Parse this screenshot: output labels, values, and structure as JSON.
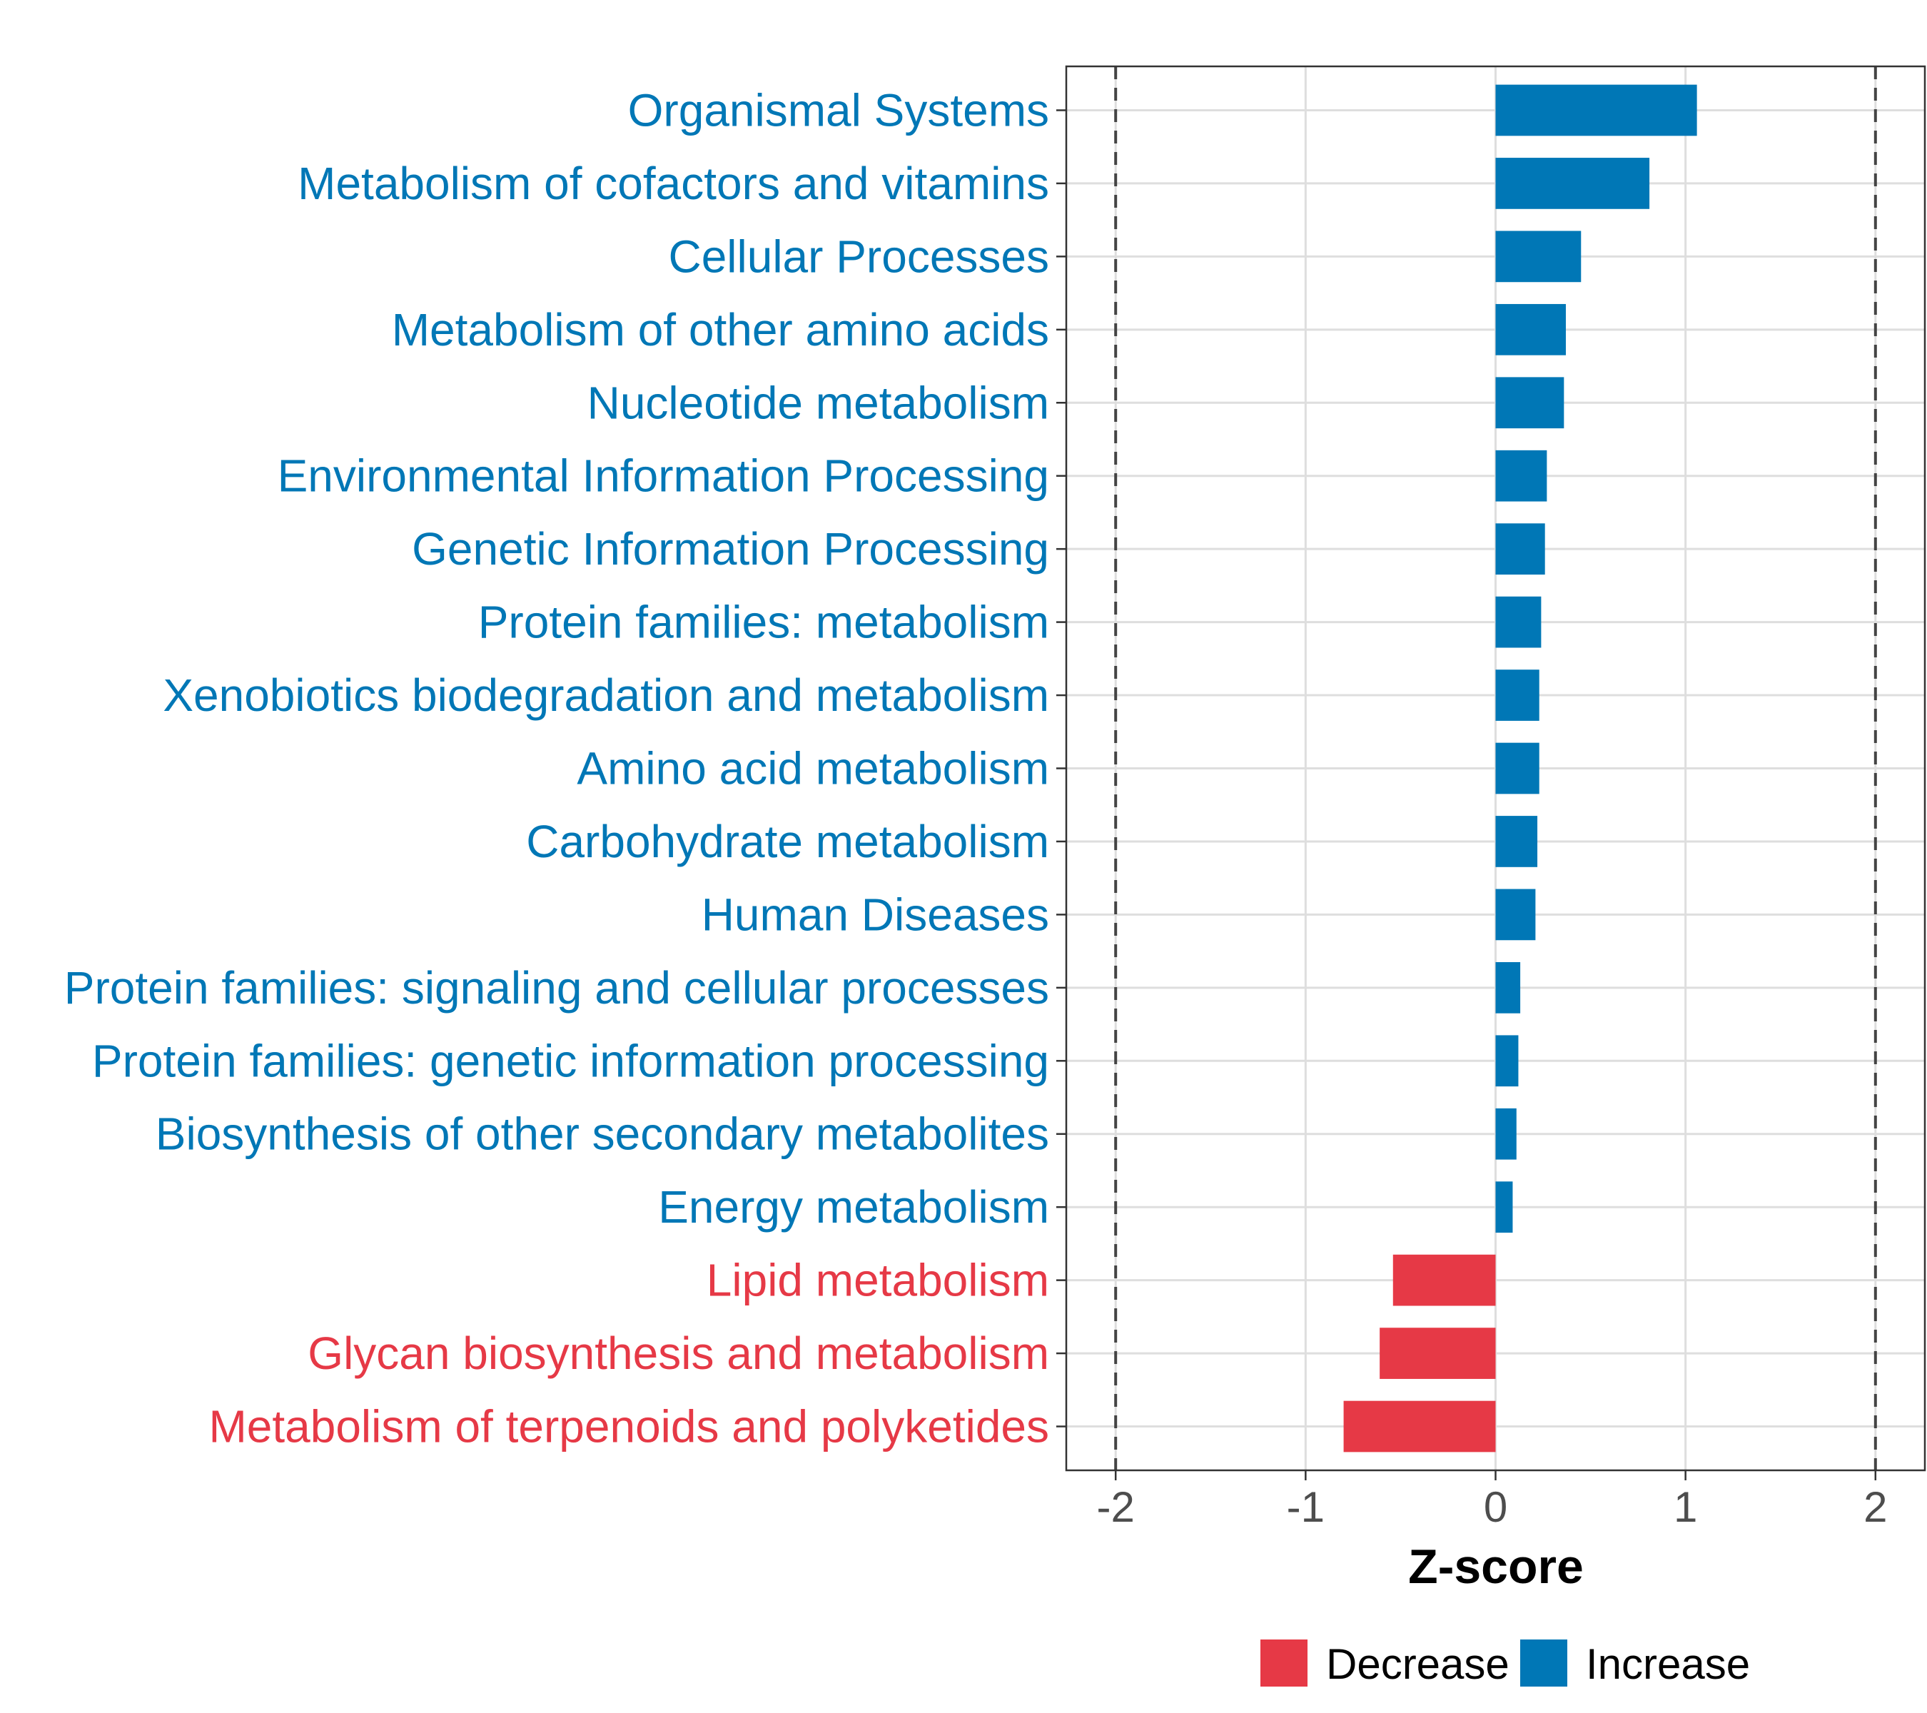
{
  "chart_data": {
    "type": "bar",
    "orientation": "horizontal",
    "xlabel": "Z-score",
    "xlim": [
      -2.26,
      2.26
    ],
    "xticks": [
      -2,
      -1,
      0,
      1,
      2
    ],
    "xtick_labels": [
      "-2",
      "-1",
      "0",
      "1",
      "2"
    ],
    "reference_lines": [
      -2,
      2
    ],
    "grid": true,
    "colors": {
      "Decrease": "#E63946",
      "Increase": "#0077B6"
    },
    "legend": {
      "position": "bottom",
      "entries": [
        "Decrease",
        "Increase"
      ]
    },
    "bars": [
      {
        "label": "Organismal Systems",
        "value": 1.06,
        "group": "Increase"
      },
      {
        "label": "Metabolism of cofactors and vitamins",
        "value": 0.81,
        "group": "Increase"
      },
      {
        "label": "Cellular Processes",
        "value": 0.45,
        "group": "Increase"
      },
      {
        "label": "Metabolism of other amino acids",
        "value": 0.37,
        "group": "Increase"
      },
      {
        "label": "Nucleotide metabolism",
        "value": 0.36,
        "group": "Increase"
      },
      {
        "label": "Environmental Information Processing",
        "value": 0.27,
        "group": "Increase"
      },
      {
        "label": "Genetic Information Processing",
        "value": 0.26,
        "group": "Increase"
      },
      {
        "label": "Protein families: metabolism",
        "value": 0.24,
        "group": "Increase"
      },
      {
        "label": "Xenobiotics biodegradation and metabolism",
        "value": 0.23,
        "group": "Increase"
      },
      {
        "label": "Amino acid metabolism",
        "value": 0.23,
        "group": "Increase"
      },
      {
        "label": "Carbohydrate metabolism",
        "value": 0.22,
        "group": "Increase"
      },
      {
        "label": "Human Diseases",
        "value": 0.21,
        "group": "Increase"
      },
      {
        "label": "Protein families: signaling and cellular processes",
        "value": 0.13,
        "group": "Increase"
      },
      {
        "label": "Protein families: genetic information processing",
        "value": 0.12,
        "group": "Increase"
      },
      {
        "label": "Biosynthesis of other secondary metabolites",
        "value": 0.11,
        "group": "Increase"
      },
      {
        "label": "Energy metabolism",
        "value": 0.09,
        "group": "Increase"
      },
      {
        "label": "Lipid metabolism",
        "value": -0.54,
        "group": "Decrease"
      },
      {
        "label": "Glycan biosynthesis and metabolism",
        "value": -0.61,
        "group": "Decrease"
      },
      {
        "label": "Metabolism of terpenoids and polyketides",
        "value": -0.8,
        "group": "Decrease"
      }
    ]
  }
}
